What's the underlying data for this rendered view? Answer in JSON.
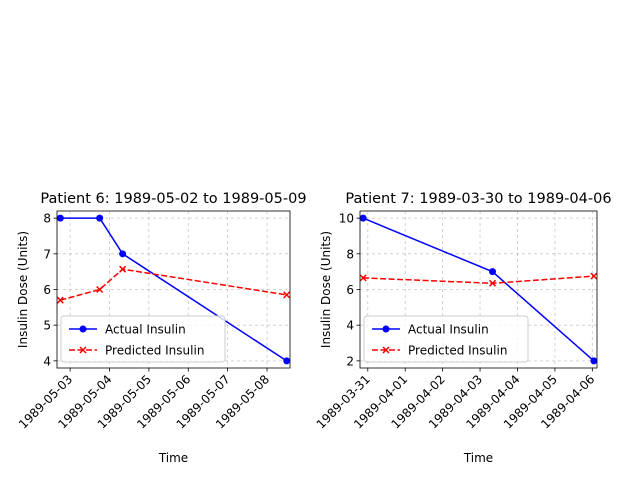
{
  "chart_data": [
    {
      "type": "line",
      "title": "Patient 6: 1989-05-02 to 1989-05-09",
      "xlabel": "Time",
      "ylabel": "Insulin Dose (Units)",
      "xlim": [
        "1989-05-02T16:00",
        "1989-05-08T14:00"
      ],
      "ylim": [
        3.8,
        8.2
      ],
      "x_ticks": [
        "1989-05-03",
        "1989-05-04",
        "1989-05-05",
        "1989-05-06",
        "1989-05-07",
        "1989-05-08"
      ],
      "y_ticks": [
        4,
        5,
        6,
        7,
        8
      ],
      "grid": true,
      "legend_position": "lower-left",
      "series": [
        {
          "name": "Actual Insulin",
          "color": "#0000ff",
          "line_style": "solid",
          "marker": "circle",
          "points": [
            {
              "x": "1989-05-02T18:00",
              "y": 8
            },
            {
              "x": "1989-05-03T18:00",
              "y": 8
            },
            {
              "x": "1989-05-04T08:00",
              "y": 7
            },
            {
              "x": "1989-05-08T12:00",
              "y": 4
            }
          ]
        },
        {
          "name": "Predicted Insulin",
          "color": "#ff0000",
          "line_style": "dashed",
          "marker": "x",
          "points": [
            {
              "x": "1989-05-02T18:00",
              "y": 5.7
            },
            {
              "x": "1989-05-03T18:00",
              "y": 6.0
            },
            {
              "x": "1989-05-04T08:00",
              "y": 6.57
            },
            {
              "x": "1989-05-08T12:00",
              "y": 5.85
            }
          ]
        }
      ]
    },
    {
      "type": "line",
      "title": "Patient 7: 1989-03-30 to 1989-04-06",
      "xlabel": "Time",
      "ylabel": "Insulin Dose (Units)",
      "xlim": [
        "1989-03-30T19:00",
        "1989-04-06T03:00"
      ],
      "ylim": [
        1.6,
        10.4
      ],
      "x_ticks": [
        "1989-03-31",
        "1989-04-01",
        "1989-04-02",
        "1989-04-03",
        "1989-04-04",
        "1989-04-05",
        "1989-04-06"
      ],
      "y_ticks": [
        2,
        4,
        6,
        8,
        10
      ],
      "grid": true,
      "legend_position": "lower-left",
      "series": [
        {
          "name": "Actual Insulin",
          "color": "#0000ff",
          "line_style": "solid",
          "marker": "circle",
          "points": [
            {
              "x": "1989-03-30T21:00",
              "y": 10
            },
            {
              "x": "1989-04-03T08:00",
              "y": 7
            },
            {
              "x": "1989-04-06T01:00",
              "y": 2
            }
          ]
        },
        {
          "name": "Predicted Insulin",
          "color": "#ff0000",
          "line_style": "dashed",
          "marker": "x",
          "points": [
            {
              "x": "1989-03-30T21:00",
              "y": 6.65
            },
            {
              "x": "1989-04-03T08:00",
              "y": 6.35
            },
            {
              "x": "1989-04-06T01:00",
              "y": 6.75
            }
          ]
        }
      ]
    }
  ]
}
